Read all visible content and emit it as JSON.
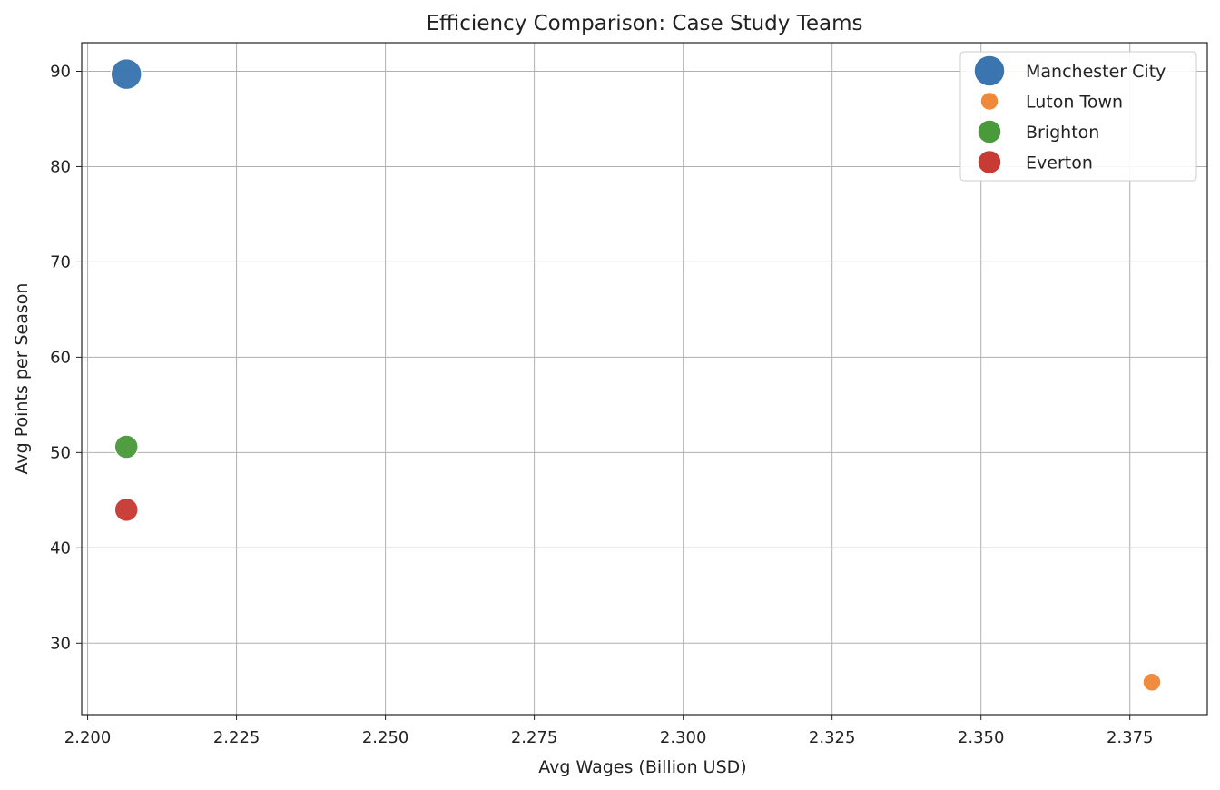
{
  "chart_data": {
    "type": "scatter",
    "title": "Efficiency Comparison: Case Study Teams",
    "xlabel": "Avg Wages (Billion USD)",
    "ylabel": "Avg Points per Season",
    "xlim": [
      2.199,
      2.388
    ],
    "ylim": [
      22.5,
      93.0
    ],
    "xticks": [
      2.2,
      2.225,
      2.25,
      2.275,
      2.3,
      2.325,
      2.35,
      2.375
    ],
    "xtick_labels": [
      "2.200",
      "2.225",
      "2.250",
      "2.275",
      "2.300",
      "2.325",
      "2.350",
      "2.375"
    ],
    "yticks": [
      30,
      40,
      50,
      60,
      70,
      80,
      90
    ],
    "ytick_labels": [
      "30",
      "40",
      "50",
      "60",
      "70",
      "80",
      "90"
    ],
    "grid": true,
    "legend_position": "top-right",
    "series": [
      {
        "name": "Manchester City",
        "x": 2.2065,
        "y": 89.7,
        "size": "large",
        "color": "#3a75b0"
      },
      {
        "name": "Luton Town",
        "x": 2.3787,
        "y": 25.9,
        "size": "small",
        "color": "#f0883a"
      },
      {
        "name": "Brighton",
        "x": 2.2065,
        "y": 50.6,
        "size": "medium",
        "color": "#4a9a3c"
      },
      {
        "name": "Everton",
        "x": 2.2065,
        "y": 44.0,
        "size": "medium",
        "color": "#c83a34"
      }
    ]
  }
}
